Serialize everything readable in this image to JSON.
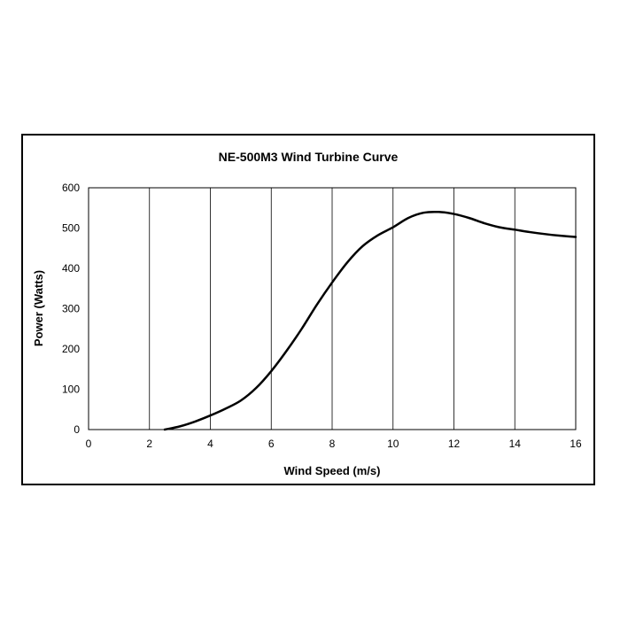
{
  "chart_data": {
    "type": "line",
    "title": "NE-500M3 Wind Turbine Curve",
    "xlabel": "Wind Speed (m/s)",
    "ylabel": "Power (Watts)",
    "xlim": [
      0,
      16
    ],
    "ylim": [
      0,
      600
    ],
    "xticks": [
      0,
      2,
      4,
      6,
      8,
      10,
      12,
      14,
      16
    ],
    "yticks": [
      0,
      100,
      200,
      300,
      400,
      500,
      600
    ],
    "grid": "vertical",
    "legend": "none",
    "colors": {
      "line": "#000000",
      "grid": "#000000",
      "frame": "#000000"
    },
    "series": [
      {
        "x": [
          2.5,
          3,
          3.5,
          4,
          4.5,
          5,
          5.5,
          6,
          6.5,
          7,
          7.5,
          8,
          8.5,
          9,
          9.5,
          10,
          10.5,
          11,
          11.5,
          12,
          12.5,
          13,
          13.5,
          14,
          14.5,
          15,
          15.5,
          16
        ],
        "y": [
          0,
          8,
          20,
          35,
          52,
          72,
          103,
          145,
          195,
          250,
          310,
          365,
          415,
          455,
          482,
          502,
          525,
          538,
          540,
          535,
          525,
          512,
          502,
          496,
          490,
          485,
          481,
          478
        ]
      }
    ]
  }
}
